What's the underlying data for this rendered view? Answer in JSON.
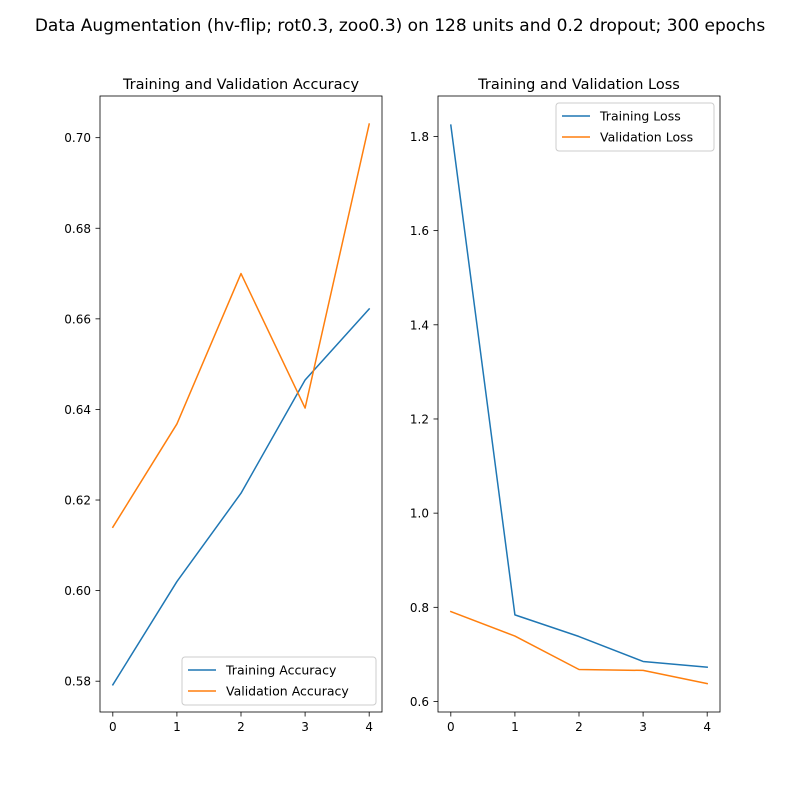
{
  "figure": {
    "suptitle": "Data Augmentation (hv-flip; rot0.3, zoo0.3) on 128 units and 0.2 dropout; 300 epochs"
  },
  "colors": {
    "training": "#1f77b4",
    "validation": "#ff7f0e",
    "axes": "#000000",
    "legend_border": "#cccccc"
  },
  "chart_data": [
    {
      "type": "line",
      "title": "Training and Validation Accuracy",
      "xlabel": "",
      "ylabel": "",
      "x": [
        0,
        1,
        2,
        3,
        4
      ],
      "xticks": [
        0,
        1,
        2,
        3,
        4
      ],
      "xtick_labels": [
        "0",
        "1",
        "2",
        "3",
        "4"
      ],
      "xlim": [
        -0.2,
        4.2
      ],
      "yticks": [
        0.58,
        0.6,
        0.62,
        0.64,
        0.66,
        0.68,
        0.7
      ],
      "ytick_labels": [
        "0.58",
        "0.60",
        "0.62",
        "0.64",
        "0.66",
        "0.68",
        "0.70"
      ],
      "ylim": [
        0.5732,
        0.7092
      ],
      "grid": false,
      "legend_position": "lower-right",
      "series": [
        {
          "name": "Training Accuracy",
          "color_key": "training",
          "values": [
            0.5792,
            0.602,
            0.6215,
            0.6465,
            0.6622
          ]
        },
        {
          "name": "Validation Accuracy",
          "color_key": "validation",
          "values": [
            0.614,
            0.6368,
            0.67,
            0.6403,
            0.703
          ]
        }
      ]
    },
    {
      "type": "line",
      "title": "Training and Validation Loss",
      "xlabel": "",
      "ylabel": "",
      "x": [
        0,
        1,
        2,
        3,
        4
      ],
      "xticks": [
        0,
        1,
        2,
        3,
        4
      ],
      "xtick_labels": [
        "0",
        "1",
        "2",
        "3",
        "4"
      ],
      "xlim": [
        -0.2,
        4.2
      ],
      "yticks": [
        0.6,
        0.8,
        1.0,
        1.2,
        1.4,
        1.6,
        1.8
      ],
      "ytick_labels": [
        "0.6",
        "0.8",
        "1.0",
        "1.2",
        "1.4",
        "1.6",
        "1.8"
      ],
      "ylim": [
        0.5777,
        1.8859
      ],
      "grid": false,
      "legend_position": "upper-right",
      "series": [
        {
          "name": "Training Loss",
          "color_key": "training",
          "values": [
            1.824,
            0.784,
            0.738,
            0.685,
            0.673
          ]
        },
        {
          "name": "Validation Loss",
          "color_key": "validation",
          "values": [
            0.791,
            0.739,
            0.668,
            0.666,
            0.638
          ]
        }
      ]
    }
  ]
}
